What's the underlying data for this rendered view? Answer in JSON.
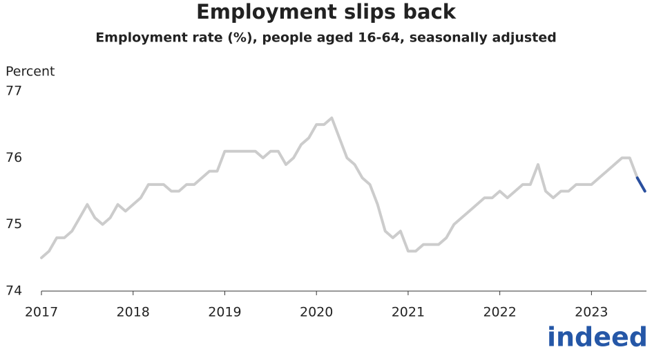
{
  "chart_data": {
    "type": "line",
    "title": "Employment slips back",
    "subtitle": "Employment rate (%), people aged 16-64, seasonally adjusted",
    "y_label": "Percent",
    "x": [
      2017,
      2017.083,
      2017.167,
      2017.25,
      2017.333,
      2017.417,
      2017.5,
      2017.583,
      2017.667,
      2017.75,
      2017.833,
      2017.917,
      2018,
      2018.083,
      2018.167,
      2018.25,
      2018.333,
      2018.417,
      2018.5,
      2018.583,
      2018.667,
      2018.75,
      2018.833,
      2018.917,
      2019,
      2019.083,
      2019.167,
      2019.25,
      2019.333,
      2019.417,
      2019.5,
      2019.583,
      2019.667,
      2019.75,
      2019.833,
      2019.917,
      2020,
      2020.083,
      2020.167,
      2020.25,
      2020.333,
      2020.417,
      2020.5,
      2020.583,
      2020.667,
      2020.75,
      2020.833,
      2020.917,
      2021,
      2021.083,
      2021.167,
      2021.25,
      2021.333,
      2021.417,
      2021.5,
      2021.583,
      2021.667,
      2021.75,
      2021.833,
      2021.917,
      2022,
      2022.083,
      2022.167,
      2022.25,
      2022.333,
      2022.417,
      2022.5,
      2022.583,
      2022.667,
      2022.75,
      2022.833,
      2022.917,
      2023,
      2023.083,
      2023.167,
      2023.25,
      2023.333,
      2023.417,
      2023.5,
      2023.583
    ],
    "series": [
      {
        "color": "#cccccc",
        "values": [
          74.5,
          74.6,
          74.8,
          74.8,
          74.9,
          75.1,
          75.3,
          75.1,
          75.0,
          75.1,
          75.3,
          75.2,
          75.3,
          75.4,
          75.6,
          75.6,
          75.6,
          75.5,
          75.5,
          75.6,
          75.6,
          75.7,
          75.8,
          75.8,
          76.1,
          76.1,
          76.1,
          76.1,
          76.1,
          76.0,
          76.1,
          76.1,
          75.9,
          76.0,
          76.2,
          76.3,
          76.5,
          76.5,
          76.6,
          76.3,
          76.0,
          75.9,
          75.7,
          75.6,
          75.3,
          74.9,
          74.8,
          74.9,
          74.6,
          74.6,
          74.7,
          74.7,
          74.7,
          74.8,
          75.0,
          75.1,
          75.2,
          75.3,
          75.4,
          75.4,
          75.5,
          75.4,
          75.5,
          75.6,
          75.6,
          75.9,
          75.5,
          75.4,
          75.5,
          75.5,
          75.6,
          75.6,
          75.6,
          75.7,
          75.8,
          75.9,
          76.0,
          76.0,
          75.7,
          null
        ]
      },
      {
        "color": "#2a4f9e",
        "values": [
          null,
          null,
          null,
          null,
          null,
          null,
          null,
          null,
          null,
          null,
          null,
          null,
          null,
          null,
          null,
          null,
          null,
          null,
          null,
          null,
          null,
          null,
          null,
          null,
          null,
          null,
          null,
          null,
          null,
          null,
          null,
          null,
          null,
          null,
          null,
          null,
          null,
          null,
          null,
          null,
          null,
          null,
          null,
          null,
          null,
          null,
          null,
          null,
          null,
          null,
          null,
          null,
          null,
          null,
          null,
          null,
          null,
          null,
          null,
          null,
          null,
          null,
          null,
          null,
          null,
          null,
          null,
          null,
          null,
          null,
          null,
          null,
          null,
          null,
          null,
          null,
          null,
          null,
          75.7,
          75.5
        ]
      }
    ],
    "xlim": [
      2017,
      2023.6
    ],
    "xticks": [
      2017,
      2018,
      2019,
      2020,
      2021,
      2022,
      2023
    ],
    "ylim": [
      74,
      77
    ],
    "yticks": [
      74,
      75,
      76,
      77
    ],
    "grid": false,
    "logo": "indeed"
  }
}
